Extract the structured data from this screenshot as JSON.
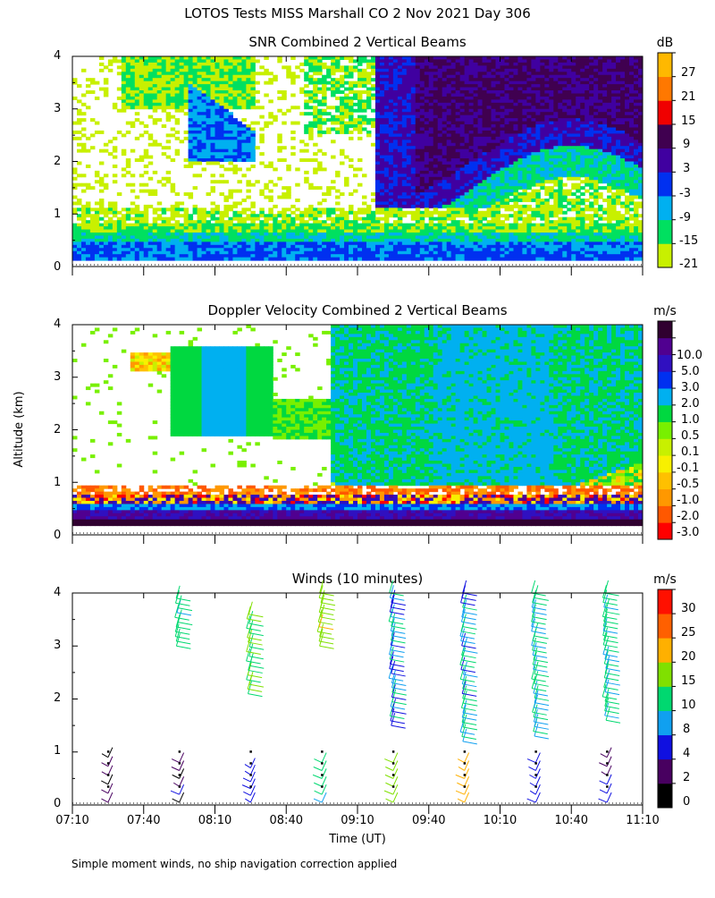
{
  "header": {
    "title": "LOTOS Tests MISS Marshall CO   2 Nov 2021 Day 306"
  },
  "footer": {
    "note": "Simple moment winds, no ship navigation correction applied"
  },
  "colors": {
    "snr": [
      "#c8f000",
      "#00e060",
      "#00b0f0",
      "#0030f0",
      "#4000a0",
      "#400050",
      "#f00000",
      "#ff7800",
      "#ffb800"
    ],
    "vel": [
      "#ff0000",
      "#ff5800",
      "#ff9800",
      "#ffc000",
      "#f8f000",
      "#c8f000",
      "#78f000",
      "#00d840",
      "#00b0f0",
      "#0030f0",
      "#3010c0",
      "#500090",
      "#300030"
    ],
    "wind": [
      "#000000",
      "#480060",
      "#1010e0",
      "#10a0f0",
      "#00d870",
      "#80e000",
      "#ffb000",
      "#ff6000",
      "#ff1000"
    ]
  },
  "chart_data": [
    {
      "type": "heatmap",
      "title": "SNR Combined 2 Vertical Beams",
      "ylabel": "Altitude (km)",
      "ylim": [
        0,
        4
      ],
      "xlim": [
        "07:10",
        "11:10"
      ],
      "y_ticks": [
        "0",
        "1",
        "2",
        "3",
        "4"
      ],
      "colorbar_unit": "dB",
      "colorbar_labels": [
        "-21",
        "-15",
        "-9",
        "-3",
        "3",
        "9",
        "15",
        "21",
        "27"
      ],
      "regions": [
        {
          "desc": "strong return layer near surface",
          "altitude_km": [
            0.2,
            0.6
          ],
          "snr_db": [
            -3,
            3
          ]
        },
        {
          "desc": "scattered weak echoes",
          "altitude_km": [
            0.6,
            4.0
          ],
          "snr_db": [
            -21,
            -15
          ]
        },
        {
          "desc": "descending enhanced layer",
          "time": [
            "07:40",
            "08:30"
          ],
          "altitude_km": [
            2.0,
            3.5
          ],
          "snr_db": [
            -9,
            -3
          ]
        },
        {
          "desc": "intense echo region",
          "time": [
            "09:10",
            "11:10"
          ],
          "altitude_km": [
            1.5,
            4.0
          ],
          "snr_db": [
            3,
            9
          ]
        }
      ]
    },
    {
      "type": "heatmap",
      "title": "Doppler Velocity Combined 2 Vertical Beams",
      "ylabel": "Altitude (km)",
      "ylim": [
        0,
        4
      ],
      "xlim": [
        "07:10",
        "11:10"
      ],
      "y_ticks": [
        "0",
        "1",
        "2",
        "3",
        "4"
      ],
      "colorbar_unit": "m/s",
      "colorbar_labels": [
        "-3.0",
        "-2.0",
        "-1.0",
        "-0.5",
        "-0.1",
        "0.1",
        "0.5",
        "1.0",
        "2.0",
        "3.0",
        "5.0",
        "10.0"
      ],
      "regions": [
        {
          "desc": "mixed strong velocities near surface",
          "altitude_km": [
            0.2,
            0.9
          ],
          "velocity_ms": [
            -3.0,
            10.0
          ]
        },
        {
          "desc": "weak upward motion aloft",
          "time": [
            "09:00",
            "11:10"
          ],
          "altitude_km": [
            1.0,
            4.0
          ],
          "velocity_ms": [
            0.5,
            2.0
          ]
        },
        {
          "desc": "weak motion early layer",
          "time": [
            "07:40",
            "08:50"
          ],
          "altitude_km": [
            2.0,
            3.5
          ],
          "velocity_ms": [
            0.5,
            2.0
          ]
        }
      ]
    },
    {
      "type": "wind_barbs",
      "title": "Winds (10 minutes)",
      "ylabel": "Altitude (km)",
      "xlabel": "Time (UT)",
      "ylim": [
        0,
        4
      ],
      "xlim": [
        "07:10",
        "11:10"
      ],
      "y_ticks": [
        "0",
        "1",
        "2",
        "3",
        "4"
      ],
      "x_ticks": [
        "07:10",
        "07:40",
        "08:10",
        "08:40",
        "09:10",
        "09:40",
        "10:10",
        "10:40",
        "11:10"
      ],
      "colorbar_unit": "m/s",
      "colorbar_labels": [
        "0",
        "2",
        "4",
        "8",
        "10",
        "15",
        "20",
        "25",
        "30"
      ],
      "profiles": [
        {
          "time": "07:25",
          "upper": null,
          "lower_top_km": 0.9,
          "lower_speed_ms": 3
        },
        {
          "time": "07:55",
          "upper": {
            "from_km": 3.0,
            "to_km": 3.9,
            "speed_ms": 12
          },
          "lower_top_km": 0.8,
          "lower_speed_ms": 3
        },
        {
          "time": "08:25",
          "upper": {
            "from_km": 2.1,
            "to_km": 3.6,
            "speed_ms": 16
          },
          "lower_top_km": 0.7,
          "lower_speed_ms": 6
        },
        {
          "time": "08:55",
          "upper": {
            "from_km": 3.0,
            "to_km": 4.0,
            "speed_ms": 18
          },
          "lower_top_km": 0.8,
          "lower_speed_ms": 10
        },
        {
          "time": "09:25",
          "upper": {
            "from_km": 1.5,
            "to_km": 4.0,
            "speed_ms": 9
          },
          "lower_top_km": 0.8,
          "lower_speed_ms": 18
        },
        {
          "time": "09:55",
          "upper": {
            "from_km": 1.2,
            "to_km": 4.0,
            "speed_ms": 10
          },
          "lower_top_km": 0.8,
          "lower_speed_ms": 22
        },
        {
          "time": "10:25",
          "upper": {
            "from_km": 1.3,
            "to_km": 4.0,
            "speed_ms": 11
          },
          "lower_top_km": 0.8,
          "lower_speed_ms": 6
        },
        {
          "time": "10:55",
          "upper": {
            "from_km": 1.6,
            "to_km": 4.0,
            "speed_ms": 12
          },
          "lower_top_km": 0.9,
          "lower_speed_ms": 5
        }
      ]
    }
  ]
}
